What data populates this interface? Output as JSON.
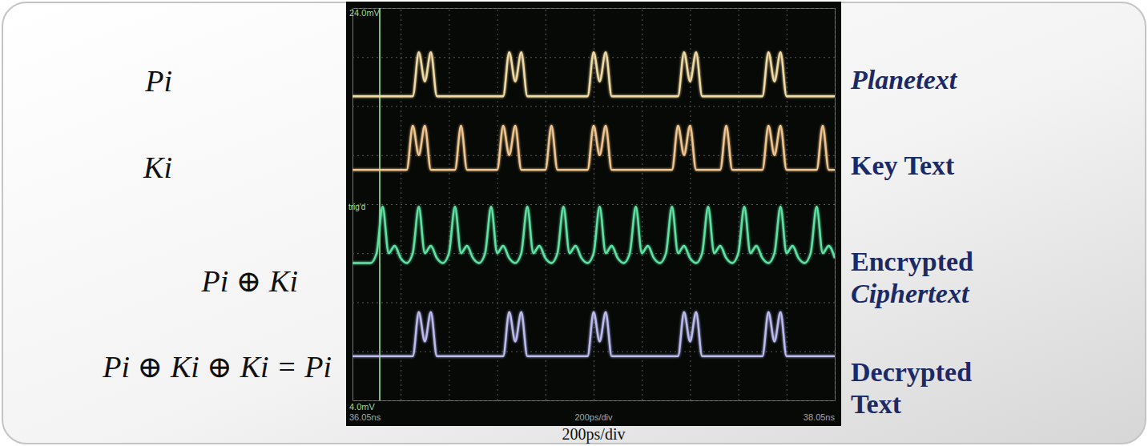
{
  "chart_data": {
    "type": "line",
    "x": [
      0,
      25,
      50,
      75,
      100,
      125,
      150,
      175,
      200,
      225,
      250,
      275,
      300,
      325,
      350,
      375,
      400,
      425,
      450,
      475,
      500,
      525,
      550,
      575,
      600,
      625,
      650,
      675,
      700,
      725,
      750,
      775,
      800,
      825,
      850,
      875,
      900,
      925,
      950,
      975,
      1000,
      1025,
      1050,
      1075,
      1100,
      1125,
      1150,
      1175,
      1200,
      1225,
      1250,
      1275,
      1300,
      1325,
      1350,
      1375,
      1400,
      1425,
      1450,
      1475,
      1500,
      1525,
      1550,
      1575,
      1600,
      1625,
      1650,
      1675,
      1700,
      1725,
      1750,
      1775,
      1800,
      1825,
      1850,
      1875,
      1900,
      1925,
      1950,
      1975,
      2000
    ],
    "xlim": [
      0,
      2000
    ],
    "xticks": [
      0,
      200,
      400,
      600,
      800,
      1000,
      1200,
      1400,
      1600,
      1800,
      2000
    ],
    "ylim": [
      0,
      8
    ],
    "yticks": [
      0,
      1,
      2,
      3,
      4,
      5,
      6,
      7,
      8
    ],
    "grid": true,
    "tick_labels": false,
    "legend": "right",
    "caption": "200ps/div",
    "screen_labels": {
      "volts_top": "24.0mV",
      "volts_bottom": "4.0mV",
      "time_start": "36.05ns",
      "time_div": "200ps/div",
      "time_end": "38.05ns",
      "trigger": "trig'd"
    },
    "series": [
      {
        "name": "Planetext",
        "formula": "Pi",
        "color": "#f3dca4",
        "values": [
          6.2,
          6.2,
          6.2,
          6.2,
          6.2,
          6.2,
          6.2,
          6.2,
          6.2,
          6.2,
          6.2,
          7.1,
          6.5,
          7.1,
          6.2,
          6.2,
          6.2,
          6.2,
          6.2,
          6.2,
          6.2,
          6.2,
          6.2,
          6.2,
          6.2,
          6.2,
          7.1,
          6.5,
          7.1,
          6.2,
          6.2,
          6.2,
          6.2,
          6.2,
          6.2,
          6.2,
          6.2,
          6.2,
          6.2,
          6.2,
          7.1,
          6.5,
          7.1,
          6.2,
          6.2,
          6.2,
          6.2,
          6.2,
          6.2,
          6.2,
          6.2,
          6.2,
          6.2,
          6.2,
          6.2,
          7.1,
          6.5,
          7.1,
          6.2,
          6.2,
          6.2,
          6.2,
          6.2,
          6.2,
          6.2,
          6.2,
          6.2,
          6.2,
          6.2,
          7.1,
          6.5,
          7.1,
          6.2,
          6.2,
          6.2,
          6.2,
          6.2,
          6.2,
          6.2,
          6.2,
          6.2
        ]
      },
      {
        "name": "Key Text",
        "formula": "Ki",
        "color": "#f2c68e",
        "values": [
          4.7,
          4.7,
          4.7,
          4.7,
          4.7,
          4.7,
          4.7,
          4.7,
          4.7,
          4.7,
          5.6,
          5.0,
          5.6,
          4.7,
          4.7,
          4.7,
          4.7,
          4.7,
          5.6,
          4.7,
          4.7,
          4.7,
          4.7,
          4.7,
          4.7,
          5.6,
          5.0,
          5.6,
          4.7,
          4.7,
          4.7,
          4.7,
          4.7,
          5.6,
          4.7,
          4.7,
          4.7,
          4.7,
          4.7,
          4.7,
          5.6,
          5.0,
          5.6,
          4.7,
          4.7,
          4.7,
          4.7,
          4.7,
          4.7,
          4.7,
          4.7,
          4.7,
          4.7,
          4.7,
          5.6,
          5.0,
          5.6,
          4.7,
          4.7,
          4.7,
          4.7,
          4.7,
          5.6,
          4.7,
          4.7,
          4.7,
          4.7,
          4.7,
          4.7,
          5.6,
          5.0,
          5.6,
          4.7,
          4.7,
          4.7,
          4.7,
          4.7,
          4.7,
          5.6,
          4.7,
          4.7
        ]
      },
      {
        "name": "Encrypted Ciphertext",
        "formula": "Pi ⊕ Ki",
        "color": "#5fe3a3",
        "values": [
          2.8,
          2.8,
          2.8,
          2.8,
          3.0,
          3.95,
          3.0,
          3.15,
          2.9,
          2.8,
          3.0,
          3.95,
          3.0,
          3.15,
          2.9,
          2.8,
          3.0,
          3.95,
          3.0,
          3.15,
          2.9,
          2.8,
          3.0,
          3.95,
          3.0,
          3.15,
          2.9,
          2.8,
          3.0,
          3.95,
          3.0,
          3.15,
          2.9,
          2.8,
          3.0,
          3.95,
          3.0,
          3.15,
          2.9,
          2.8,
          3.0,
          3.95,
          3.0,
          3.15,
          2.9,
          2.8,
          3.0,
          3.95,
          3.0,
          3.15,
          2.9,
          2.8,
          3.0,
          3.95,
          3.0,
          3.15,
          2.9,
          2.8,
          3.0,
          3.95,
          3.0,
          3.15,
          2.9,
          2.8,
          3.0,
          3.95,
          3.0,
          3.15,
          2.9,
          2.8,
          3.0,
          3.95,
          3.0,
          3.15,
          2.9,
          2.8,
          3.0,
          3.95,
          3.0,
          3.15,
          2.9
        ]
      },
      {
        "name": "Decrypted Text",
        "formula": "Pi ⊕ Ki ⊕ Ki = Pi",
        "color": "#bcbcf2",
        "values": [
          0.9,
          0.9,
          0.9,
          0.9,
          0.9,
          0.9,
          0.9,
          0.9,
          0.9,
          0.9,
          0.9,
          1.8,
          1.2,
          1.8,
          0.9,
          0.9,
          0.9,
          0.9,
          0.9,
          0.9,
          0.9,
          0.9,
          0.9,
          0.9,
          0.9,
          0.9,
          1.8,
          1.2,
          1.8,
          0.9,
          0.9,
          0.9,
          0.9,
          0.9,
          0.9,
          0.9,
          0.9,
          0.9,
          0.9,
          0.9,
          1.8,
          1.2,
          1.8,
          0.9,
          0.9,
          0.9,
          0.9,
          0.9,
          0.9,
          0.9,
          0.9,
          0.9,
          0.9,
          0.9,
          0.9,
          1.8,
          1.2,
          1.8,
          0.9,
          0.9,
          0.9,
          0.9,
          0.9,
          0.9,
          0.9,
          0.9,
          0.9,
          0.9,
          0.9,
          1.8,
          1.2,
          1.8,
          0.9,
          0.9,
          0.9,
          0.9,
          0.9,
          0.9,
          0.9,
          0.9,
          0.9
        ]
      }
    ]
  }
}
